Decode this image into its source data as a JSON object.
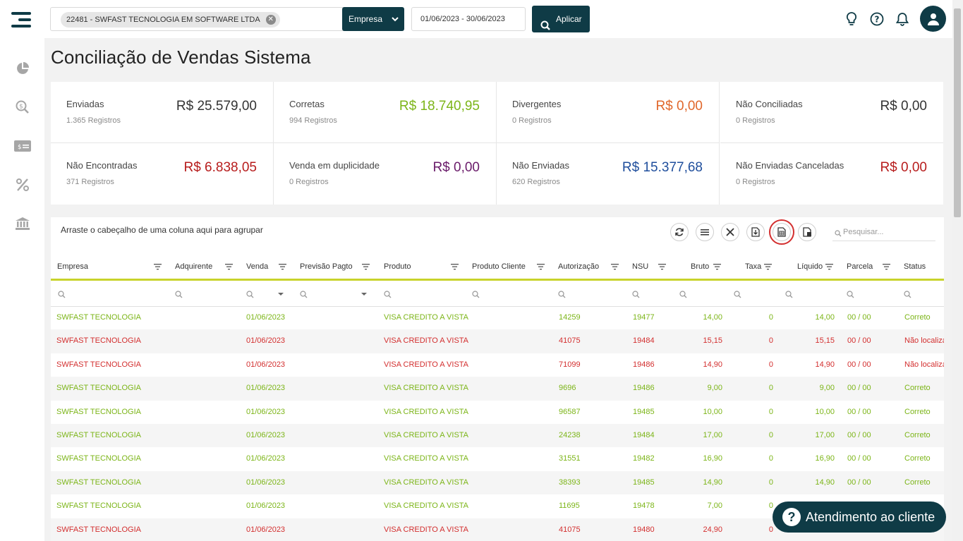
{
  "topbar": {
    "company_chip": "22481 - SWFAST TECNOLOGIA EM SOFTWARE LTDA",
    "group_select": "Empresa",
    "date_range": "01/06/2023 - 30/06/2023",
    "apply_label": "Aplicar"
  },
  "page": {
    "title": "Conciliação de Vendas Sistema"
  },
  "cards": [
    {
      "label": "Enviadas",
      "sub": "1.365 Registros",
      "value": "R$ 25.579,00",
      "color": "#333333"
    },
    {
      "label": "Corretas",
      "sub": "994 Registros",
      "value": "R$ 18.740,95",
      "color": "#7cb518"
    },
    {
      "label": "Divergentes",
      "sub": "0 Registros",
      "value": "R$ 0,00",
      "color": "#e0672b"
    },
    {
      "label": "Não Conciliadas",
      "sub": "0 Registros",
      "value": "R$ 0,00",
      "color": "#333333"
    },
    {
      "label": "Não Encontradas",
      "sub": "371 Registros",
      "value": "R$ 6.838,05",
      "color": "#b71c1c"
    },
    {
      "label": "Venda em duplicidade",
      "sub": "0 Registros",
      "value": "R$ 0,00",
      "color": "#6a1b6a"
    },
    {
      "label": "Não Enviadas",
      "sub": "620 Registros",
      "value": "R$ 15.377,68",
      "color": "#1f4e9c"
    },
    {
      "label": "Não Enviadas Canceladas",
      "sub": "0 Registros",
      "value": "R$ 0,00",
      "color": "#b71c1c"
    }
  ],
  "grid": {
    "group_hint": "Arraste o cabeçalho de uma coluna aqui para agrupar",
    "search_placeholder": "Pesquisar...",
    "columns": [
      "Empresa",
      "Adquirente",
      "Venda",
      "Previsão Pagto",
      "Produto",
      "Produto Cliente",
      "Autorização",
      "NSU",
      "Bruto",
      "Taxa",
      "Líquido",
      "Parcela",
      "Status"
    ],
    "rows": [
      {
        "status_type": "ok",
        "empresa": "SWFAST TECNOLOGIA",
        "venda": "01/06/2023",
        "produto": "VISA CREDITO A VISTA",
        "autorizacao": "14259",
        "nsu": "19477",
        "bruto": "14,00",
        "taxa": "0",
        "liquido": "14,00",
        "parcela": "00 / 00",
        "status": "Correto"
      },
      {
        "status_type": "bad",
        "empresa": "SWFAST TECNOLOGIA",
        "venda": "01/06/2023",
        "produto": "VISA CREDITO A VISTA",
        "autorizacao": "41075",
        "nsu": "19484",
        "bruto": "15,15",
        "taxa": "0",
        "liquido": "15,15",
        "parcela": "00 / 00",
        "status": "Não localiza"
      },
      {
        "status_type": "bad",
        "empresa": "SWFAST TECNOLOGIA",
        "venda": "01/06/2023",
        "produto": "VISA CREDITO A VISTA",
        "autorizacao": "71099",
        "nsu": "19486",
        "bruto": "14,90",
        "taxa": "0",
        "liquido": "14,90",
        "parcela": "00 / 00",
        "status": "Não localiza"
      },
      {
        "status_type": "ok",
        "empresa": "SWFAST TECNOLOGIA",
        "venda": "01/06/2023",
        "produto": "VISA CREDITO A VISTA",
        "autorizacao": "9696",
        "nsu": "19486",
        "bruto": "9,00",
        "taxa": "0",
        "liquido": "9,00",
        "parcela": "00 / 00",
        "status": "Correto"
      },
      {
        "status_type": "ok",
        "empresa": "SWFAST TECNOLOGIA",
        "venda": "01/06/2023",
        "produto": "VISA CREDITO A VISTA",
        "autorizacao": "96587",
        "nsu": "19485",
        "bruto": "10,00",
        "taxa": "0",
        "liquido": "10,00",
        "parcela": "00 / 00",
        "status": "Correto"
      },
      {
        "status_type": "ok",
        "empresa": "SWFAST TECNOLOGIA",
        "venda": "01/06/2023",
        "produto": "VISA CREDITO A VISTA",
        "autorizacao": "24238",
        "nsu": "19484",
        "bruto": "17,00",
        "taxa": "0",
        "liquido": "17,00",
        "parcela": "00 / 00",
        "status": "Correto"
      },
      {
        "status_type": "ok",
        "empresa": "SWFAST TECNOLOGIA",
        "venda": "01/06/2023",
        "produto": "VISA CREDITO A VISTA",
        "autorizacao": "31551",
        "nsu": "19482",
        "bruto": "16,90",
        "taxa": "0",
        "liquido": "16,90",
        "parcela": "00 / 00",
        "status": "Correto"
      },
      {
        "status_type": "ok",
        "empresa": "SWFAST TECNOLOGIA",
        "venda": "01/06/2023",
        "produto": "VISA CREDITO A VISTA",
        "autorizacao": "38393",
        "nsu": "19485",
        "bruto": "14,90",
        "taxa": "0",
        "liquido": "14,90",
        "parcela": "00 / 00",
        "status": "Correto"
      },
      {
        "status_type": "ok",
        "empresa": "SWFAST TECNOLOGIA",
        "venda": "01/06/2023",
        "produto": "VISA CREDITO A VISTA",
        "autorizacao": "11695",
        "nsu": "19478",
        "bruto": "7,00",
        "taxa": "0",
        "liquido": "",
        "parcela": "",
        "status": ""
      },
      {
        "status_type": "bad",
        "empresa": "SWFAST TECNOLOGIA",
        "venda": "01/06/2023",
        "produto": "VISA CREDITO A VISTA",
        "autorizacao": "41075",
        "nsu": "19480",
        "bruto": "24,90",
        "taxa": "0",
        "liquido": "",
        "parcela": "",
        "status": ""
      }
    ]
  },
  "help": {
    "label": "Atendimento ao cliente"
  }
}
